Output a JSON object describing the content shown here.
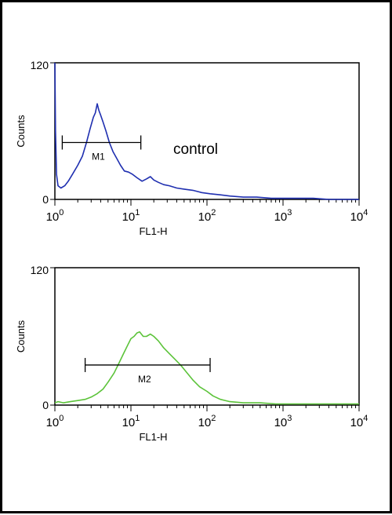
{
  "chart_data": [
    {
      "type": "line",
      "xscale": "log",
      "xlim": [
        1,
        10000
      ],
      "ylim": [
        0,
        120
      ],
      "xlabel": "FL1-H",
      "ylabel": "Counts",
      "yticks": [
        "0",
        "120"
      ],
      "xticks": [
        {
          "base": "10",
          "exp": "0"
        },
        {
          "base": "10",
          "exp": "1"
        },
        {
          "base": "10",
          "exp": "2"
        },
        {
          "base": "10",
          "exp": "3"
        },
        {
          "base": "10",
          "exp": "4"
        }
      ],
      "color": "#1f2fb0",
      "annotation": "control",
      "gate": {
        "label": "M1",
        "x_start": 1.25,
        "x_end": 13.5,
        "y": 50
      },
      "series": [
        {
          "x": [
            1.0,
            1.02,
            1.05,
            1.1,
            1.2,
            1.35,
            1.5,
            1.7,
            2.0,
            2.3,
            2.6,
            2.9,
            3.2,
            3.4,
            3.6,
            3.8,
            4.0,
            4.3,
            4.7,
            5.2,
            5.8,
            6.5,
            7.3,
            8.2,
            9.3,
            10.5,
            12.0,
            14.0,
            16.0,
            18.0,
            20.0,
            23.0,
            27.0,
            32.0,
            40.0,
            50.0,
            65.0,
            85.0,
            110.0,
            150.0,
            200.0,
            300.0,
            450.0,
            700.0,
            1000.0,
            1500.0,
            2500.0,
            4000.0,
            7000.0,
            10000.0
          ],
          "y": [
            120,
            60,
            22,
            12,
            10,
            12,
            16,
            22,
            30,
            38,
            50,
            62,
            72,
            76,
            84,
            78,
            74,
            68,
            60,
            50,
            42,
            36,
            30,
            25,
            24,
            22,
            19,
            16,
            18,
            20,
            17,
            15,
            13,
            12,
            10,
            9,
            8,
            6,
            5,
            4,
            3,
            2,
            2,
            1,
            1,
            1,
            1,
            0,
            0,
            0
          ]
        }
      ]
    },
    {
      "type": "line",
      "xscale": "log",
      "xlim": [
        1,
        10000
      ],
      "ylim": [
        0,
        120
      ],
      "xlabel": "FL1-H",
      "ylabel": "Counts",
      "yticks": [
        "0",
        "120"
      ],
      "xticks": [
        {
          "base": "10",
          "exp": "0"
        },
        {
          "base": "10",
          "exp": "1"
        },
        {
          "base": "10",
          "exp": "2"
        },
        {
          "base": "10",
          "exp": "3"
        },
        {
          "base": "10",
          "exp": "4"
        }
      ],
      "color": "#5cc33a",
      "annotation": "",
      "gate": {
        "label": "M2",
        "x_start": 2.5,
        "x_end": 110,
        "y": 35
      },
      "series": [
        {
          "x": [
            1.0,
            1.1,
            1.3,
            1.6,
            2.0,
            2.5,
            3.0,
            3.6,
            4.3,
            5.0,
            6.0,
            7.0,
            8.0,
            9.0,
            10.0,
            11.0,
            12.0,
            13.0,
            14.5,
            16.0,
            18.0,
            20.0,
            23.0,
            27.0,
            32.0,
            38.0,
            45.0,
            55.0,
            65.0,
            80.0,
            100.0,
            120.0,
            150.0,
            200.0,
            300.0,
            500.0,
            800.0,
            1500.0,
            3000.0,
            10000.0
          ],
          "y": [
            2,
            3,
            2,
            3,
            4,
            5,
            7,
            10,
            14,
            20,
            28,
            37,
            45,
            52,
            58,
            60,
            63,
            64,
            60,
            60,
            62,
            60,
            56,
            50,
            45,
            40,
            35,
            28,
            22,
            16,
            12,
            8,
            5,
            3,
            2,
            2,
            1,
            1,
            1,
            1
          ]
        }
      ]
    }
  ]
}
